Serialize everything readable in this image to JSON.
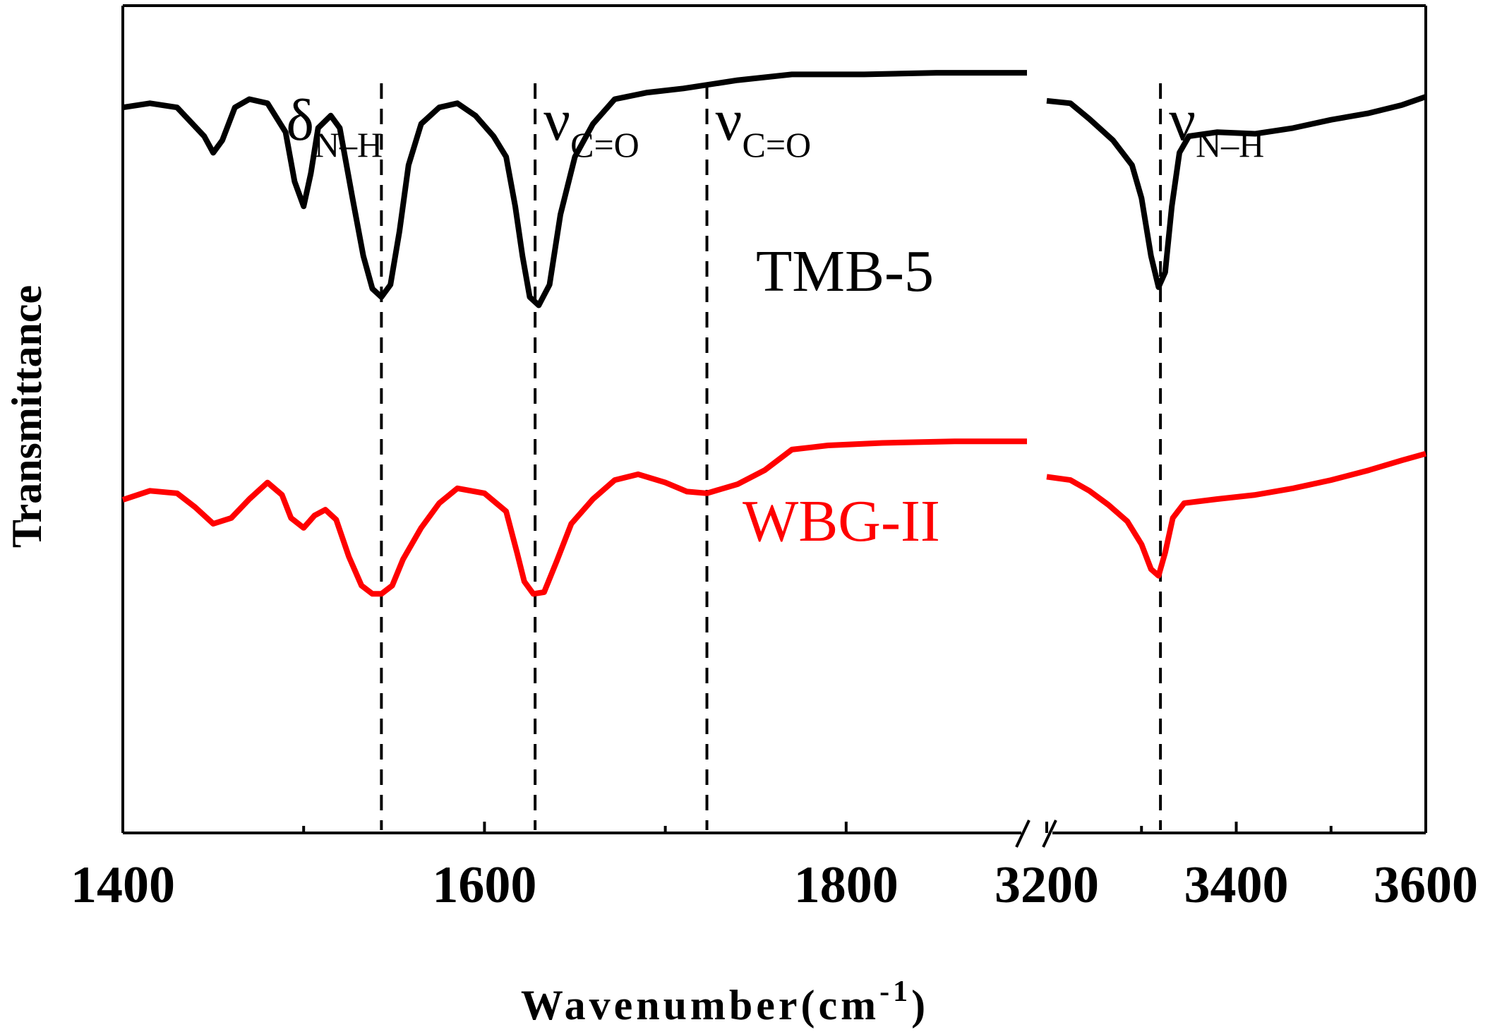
{
  "chart_data": {
    "type": "line",
    "xlabel_main": "Wavenumber(cm",
    "xlabel_sup": "-1",
    "xlabel_close": ")",
    "ylabel": "Transmittance",
    "x_segments": [
      {
        "xlim": [
          1400,
          1900
        ],
        "ticks": [
          "1400",
          "1600",
          "1800"
        ]
      },
      {
        "xlim": [
          3200,
          3600
        ],
        "ticks": [
          "3200",
          "3400",
          "3600"
        ]
      }
    ],
    "axis_break": true,
    "y_ticks_shown": false,
    "annotations": [
      {
        "x": 1543,
        "symbol": "δ",
        "sub": "N–H"
      },
      {
        "x": 1628,
        "symbol": "ν",
        "sub": "C=O"
      },
      {
        "x": 1723,
        "symbol": "ν",
        "sub": "C=O"
      },
      {
        "x": 3320,
        "symbol": "ν",
        "sub": "N–H"
      }
    ],
    "series": [
      {
        "name": "TMB-5",
        "color": "#000000",
        "segments": [
          [
            [
              1400,
              0.88
            ],
            [
              1415,
              0.885
            ],
            [
              1430,
              0.88
            ],
            [
              1445,
              0.845
            ],
            [
              1450,
              0.825
            ],
            [
              1455,
              0.84
            ],
            [
              1462,
              0.88
            ],
            [
              1470,
              0.89
            ],
            [
              1480,
              0.885
            ],
            [
              1490,
              0.85
            ],
            [
              1495,
              0.79
            ],
            [
              1500,
              0.76
            ],
            [
              1504,
              0.8
            ],
            [
              1508,
              0.855
            ],
            [
              1515,
              0.87
            ],
            [
              1520,
              0.855
            ],
            [
              1527,
              0.77
            ],
            [
              1533,
              0.7
            ],
            [
              1538,
              0.66
            ],
            [
              1543,
              0.65
            ],
            [
              1548,
              0.665
            ],
            [
              1553,
              0.73
            ],
            [
              1558,
              0.81
            ],
            [
              1565,
              0.86
            ],
            [
              1575,
              0.88
            ],
            [
              1585,
              0.885
            ],
            [
              1595,
              0.87
            ],
            [
              1605,
              0.845
            ],
            [
              1612,
              0.82
            ],
            [
              1617,
              0.76
            ],
            [
              1621,
              0.7
            ],
            [
              1625,
              0.65
            ],
            [
              1630,
              0.64
            ],
            [
              1636,
              0.665
            ],
            [
              1642,
              0.75
            ],
            [
              1650,
              0.82
            ],
            [
              1660,
              0.86
            ],
            [
              1672,
              0.89
            ],
            [
              1690,
              0.898
            ],
            [
              1710,
              0.903
            ],
            [
              1740,
              0.913
            ],
            [
              1770,
              0.92
            ],
            [
              1810,
              0.92
            ],
            [
              1850,
              0.922
            ],
            [
              1900,
              0.922
            ]
          ],
          [
            [
              3200,
              0.888
            ],
            [
              3225,
              0.885
            ],
            [
              3245,
              0.866
            ],
            [
              3270,
              0.84
            ],
            [
              3290,
              0.81
            ],
            [
              3300,
              0.77
            ],
            [
              3310,
              0.7
            ],
            [
              3318,
              0.662
            ],
            [
              3325,
              0.68
            ],
            [
              3332,
              0.76
            ],
            [
              3340,
              0.825
            ],
            [
              3350,
              0.845
            ],
            [
              3380,
              0.85
            ],
            [
              3420,
              0.848
            ],
            [
              3460,
              0.855
            ],
            [
              3500,
              0.865
            ],
            [
              3540,
              0.873
            ],
            [
              3575,
              0.883
            ],
            [
              3600,
              0.893
            ]
          ]
        ]
      },
      {
        "name": "WBG-II",
        "color": "#ff0000",
        "segments": [
          [
            [
              1400,
              0.404
            ],
            [
              1415,
              0.415
            ],
            [
              1430,
              0.412
            ],
            [
              1440,
              0.395
            ],
            [
              1450,
              0.375
            ],
            [
              1460,
              0.382
            ],
            [
              1470,
              0.405
            ],
            [
              1480,
              0.425
            ],
            [
              1488,
              0.41
            ],
            [
              1493,
              0.382
            ],
            [
              1500,
              0.37
            ],
            [
              1506,
              0.385
            ],
            [
              1512,
              0.392
            ],
            [
              1518,
              0.38
            ],
            [
              1525,
              0.335
            ],
            [
              1532,
              0.3
            ],
            [
              1538,
              0.29
            ],
            [
              1543,
              0.29
            ],
            [
              1549,
              0.3
            ],
            [
              1555,
              0.332
            ],
            [
              1565,
              0.37
            ],
            [
              1575,
              0.4
            ],
            [
              1585,
              0.418
            ],
            [
              1600,
              0.412
            ],
            [
              1612,
              0.39
            ],
            [
              1618,
              0.34
            ],
            [
              1622,
              0.305
            ],
            [
              1627,
              0.29
            ],
            [
              1633,
              0.292
            ],
            [
              1640,
              0.33
            ],
            [
              1648,
              0.375
            ],
            [
              1660,
              0.405
            ],
            [
              1672,
              0.428
            ],
            [
              1685,
              0.435
            ],
            [
              1700,
              0.425
            ],
            [
              1712,
              0.414
            ],
            [
              1723,
              0.412
            ],
            [
              1740,
              0.423
            ],
            [
              1755,
              0.44
            ],
            [
              1770,
              0.465
            ],
            [
              1790,
              0.47
            ],
            [
              1820,
              0.473
            ],
            [
              1860,
              0.475
            ],
            [
              1900,
              0.475
            ]
          ],
          [
            [
              3200,
              0.432
            ],
            [
              3225,
              0.428
            ],
            [
              3245,
              0.415
            ],
            [
              3265,
              0.398
            ],
            [
              3285,
              0.378
            ],
            [
              3300,
              0.35
            ],
            [
              3310,
              0.32
            ],
            [
              3318,
              0.312
            ],
            [
              3325,
              0.34
            ],
            [
              3333,
              0.382
            ],
            [
              3345,
              0.4
            ],
            [
              3380,
              0.405
            ],
            [
              3420,
              0.41
            ],
            [
              3460,
              0.418
            ],
            [
              3500,
              0.428
            ],
            [
              3540,
              0.44
            ],
            [
              3575,
              0.452
            ],
            [
              3600,
              0.46
            ]
          ]
        ]
      }
    ]
  }
}
